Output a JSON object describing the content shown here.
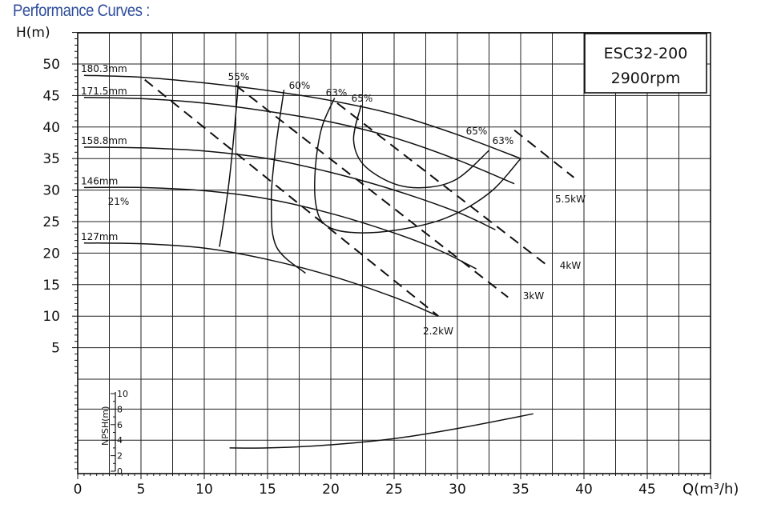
{
  "page_heading": "Performance Curves :",
  "chart_data": {
    "type": "line",
    "model_box": {
      "model": "ESC32-200",
      "speed": "2900rpm"
    },
    "xlabel": "Q(m³/h)",
    "ylabel": "H(m)",
    "npsh_label": "NPSH(m)",
    "xlim": [
      0,
      50
    ],
    "ylim": [
      0,
      55
    ],
    "x_ticks": [
      "0",
      "5",
      "10",
      "15",
      "20",
      "25",
      "30",
      "35",
      "40",
      "45"
    ],
    "y_ticks": [
      "5",
      "10",
      "15",
      "20",
      "25",
      "30",
      "35",
      "40",
      "45",
      "50"
    ],
    "npsh_ylim": [
      0,
      10
    ],
    "npsh_ticks": [
      "0",
      "2",
      "4",
      "6",
      "8",
      "10"
    ],
    "grid": true,
    "head_curves": [
      {
        "name": "180.3mm",
        "points": [
          [
            0.5,
            48.2
          ],
          [
            5,
            47.9
          ],
          [
            10,
            47
          ],
          [
            15,
            45.8
          ],
          [
            20,
            44.2
          ],
          [
            25,
            42
          ],
          [
            30,
            38.8
          ],
          [
            35,
            35
          ]
        ]
      },
      {
        "name": "171.5mm",
        "points": [
          [
            0.5,
            44.7
          ],
          [
            5,
            44.5
          ],
          [
            10,
            43.8
          ],
          [
            15,
            42.5
          ],
          [
            20,
            40.8
          ],
          [
            25,
            38.3
          ],
          [
            30,
            34.8
          ],
          [
            34.5,
            31
          ]
        ]
      },
      {
        "name": "158.8mm",
        "points": [
          [
            0.5,
            36.8
          ],
          [
            5,
            36.7
          ],
          [
            10,
            36.2
          ],
          [
            15,
            35
          ],
          [
            20,
            32.8
          ],
          [
            25,
            30
          ],
          [
            30,
            26.5
          ],
          [
            33,
            23.7
          ]
        ]
      },
      {
        "name": "146mm",
        "points": [
          [
            0.5,
            30.4
          ],
          [
            5,
            30.4
          ],
          [
            10,
            29.9
          ],
          [
            15,
            28.6
          ],
          [
            20,
            26.3
          ],
          [
            25,
            23.2
          ],
          [
            28.5,
            20.5
          ],
          [
            31.5,
            17.5
          ]
        ]
      },
      {
        "name": "127mm",
        "points": [
          [
            0.5,
            21.6
          ],
          [
            5,
            21.5
          ],
          [
            10,
            20.8
          ],
          [
            15,
            19
          ],
          [
            20,
            16.4
          ],
          [
            25,
            13
          ],
          [
            28.5,
            10
          ]
        ]
      }
    ],
    "efficiency_curves": [
      {
        "name": "21%",
        "points": [
          [
            11.2,
            21
          ],
          [
            11.6,
            26
          ],
          [
            12,
            32
          ],
          [
            12.4,
            40
          ],
          [
            12.7,
            47.3
          ]
        ]
      },
      {
        "name": "55%",
        "points": [
          [
            12.2,
            46.9
          ]
        ]
      },
      {
        "name": "60%",
        "points": [
          [
            18,
            16.8
          ],
          [
            15.7,
            21
          ],
          [
            15.3,
            28
          ],
          [
            15.6,
            36
          ],
          [
            16.3,
            45.9
          ]
        ]
      },
      {
        "name": "63%",
        "points": [
          [
            20.3,
            44.6
          ],
          [
            19.3,
            40
          ],
          [
            18.8,
            34
          ],
          [
            18.8,
            28
          ],
          [
            19.5,
            24.6
          ],
          [
            21.5,
            23.3
          ],
          [
            25,
            23.6
          ],
          [
            29,
            25.5
          ],
          [
            32.5,
            29.5
          ],
          [
            35,
            35
          ]
        ]
      },
      {
        "name": "65%",
        "points": [
          [
            22.4,
            43.5
          ],
          [
            21.8,
            38
          ],
          [
            22.6,
            34
          ],
          [
            25,
            31
          ],
          [
            27.5,
            30.4
          ],
          [
            30,
            31.8
          ],
          [
            32.5,
            36.3
          ]
        ]
      }
    ],
    "efficiency_labels": [
      "55%",
      "60%",
      "63%",
      "65%",
      "65%",
      "63%",
      "21%"
    ],
    "power_lines": [
      {
        "name": "2.2kW",
        "points": [
          [
            5.3,
            47.5
          ],
          [
            28.5,
            10
          ]
        ]
      },
      {
        "name": "3kW",
        "points": [
          [
            12.5,
            46.6
          ],
          [
            34,
            13
          ]
        ]
      },
      {
        "name": "4kW",
        "points": [
          [
            20.5,
            43.8
          ],
          [
            37,
            18.2
          ]
        ]
      },
      {
        "name": "5.5kW",
        "points": [
          [
            34.5,
            39.5
          ],
          [
            39.2,
            32
          ]
        ]
      }
    ],
    "npsh_curve": {
      "points": [
        [
          12,
          3
        ],
        [
          15,
          3
        ],
        [
          20,
          3.4
        ],
        [
          25,
          4.2
        ],
        [
          30,
          5.5
        ],
        [
          36,
          7.4
        ]
      ]
    }
  }
}
